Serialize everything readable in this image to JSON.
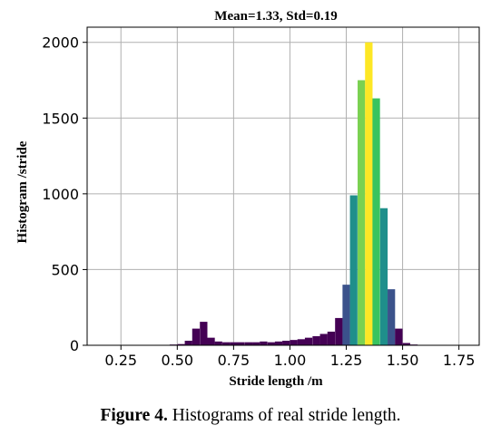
{
  "chart_data": {
    "type": "bar",
    "title": "Mean=1.33, Std=0.19",
    "xlabel": "Stride length /m",
    "ylabel": "Histogram /stride",
    "xlim": [
      0.1,
      1.84
    ],
    "ylim": [
      0,
      2100
    ],
    "bin_width": 0.0333,
    "xticks": [
      "0.25",
      "0.50",
      "0.75",
      "1.00",
      "1.25",
      "1.50",
      "1.75"
    ],
    "yticks": [
      "0",
      "500",
      "1000",
      "1500",
      "2000"
    ],
    "grid": true,
    "bins": [
      {
        "x": 0.15,
        "value": 3,
        "color": "#440154"
      },
      {
        "x": 0.183,
        "value": 3,
        "color": "#440154"
      },
      {
        "x": 0.217,
        "value": 3,
        "color": "#440154"
      },
      {
        "x": 0.25,
        "value": 3,
        "color": "#440154"
      },
      {
        "x": 0.283,
        "value": 3,
        "color": "#440154"
      },
      {
        "x": 0.317,
        "value": 0,
        "color": "#440154"
      },
      {
        "x": 0.35,
        "value": 0,
        "color": "#440154"
      },
      {
        "x": 0.383,
        "value": 0,
        "color": "#440154"
      },
      {
        "x": 0.417,
        "value": 3,
        "color": "#440154"
      },
      {
        "x": 0.45,
        "value": 3,
        "color": "#440154"
      },
      {
        "x": 0.483,
        "value": 5,
        "color": "#440154"
      },
      {
        "x": 0.517,
        "value": 8,
        "color": "#440154"
      },
      {
        "x": 0.55,
        "value": 30,
        "color": "#440154"
      },
      {
        "x": 0.583,
        "value": 110,
        "color": "#440154"
      },
      {
        "x": 0.617,
        "value": 155,
        "color": "#440154"
      },
      {
        "x": 0.65,
        "value": 50,
        "color": "#440154"
      },
      {
        "x": 0.683,
        "value": 25,
        "color": "#440154"
      },
      {
        "x": 0.717,
        "value": 20,
        "color": "#440154"
      },
      {
        "x": 0.75,
        "value": 20,
        "color": "#440154"
      },
      {
        "x": 0.783,
        "value": 20,
        "color": "#440154"
      },
      {
        "x": 0.817,
        "value": 20,
        "color": "#440154"
      },
      {
        "x": 0.85,
        "value": 20,
        "color": "#440154"
      },
      {
        "x": 0.883,
        "value": 25,
        "color": "#440154"
      },
      {
        "x": 0.917,
        "value": 20,
        "color": "#440154"
      },
      {
        "x": 0.95,
        "value": 25,
        "color": "#440154"
      },
      {
        "x": 0.983,
        "value": 30,
        "color": "#440154"
      },
      {
        "x": 1.017,
        "value": 35,
        "color": "#440154"
      },
      {
        "x": 1.05,
        "value": 40,
        "color": "#440154"
      },
      {
        "x": 1.083,
        "value": 50,
        "color": "#440154"
      },
      {
        "x": 1.117,
        "value": 60,
        "color": "#440154"
      },
      {
        "x": 1.15,
        "value": 75,
        "color": "#440154"
      },
      {
        "x": 1.183,
        "value": 90,
        "color": "#440154"
      },
      {
        "x": 1.217,
        "value": 180,
        "color": "#440154"
      },
      {
        "x": 1.25,
        "value": 400,
        "color": "#3b528b"
      },
      {
        "x": 1.283,
        "value": 990,
        "color": "#1f8f8b"
      },
      {
        "x": 1.317,
        "value": 1750,
        "color": "#7ad151"
      },
      {
        "x": 1.35,
        "value": 2000,
        "color": "#fde725"
      },
      {
        "x": 1.383,
        "value": 1630,
        "color": "#38c35f"
      },
      {
        "x": 1.417,
        "value": 905,
        "color": "#1f8f8b"
      },
      {
        "x": 1.45,
        "value": 370,
        "color": "#3b528b"
      },
      {
        "x": 1.483,
        "value": 110,
        "color": "#440154"
      },
      {
        "x": 1.517,
        "value": 15,
        "color": "#440154"
      },
      {
        "x": 1.55,
        "value": 5,
        "color": "#440154"
      },
      {
        "x": 1.583,
        "value": 0,
        "color": "#440154"
      },
      {
        "x": 1.617,
        "value": 0,
        "color": "#440154"
      },
      {
        "x": 1.65,
        "value": 0,
        "color": "#440154"
      },
      {
        "x": 1.683,
        "value": 3,
        "color": "#440154"
      },
      {
        "x": 1.717,
        "value": 0,
        "color": "#440154"
      }
    ]
  },
  "caption": {
    "label": "Figure 4.",
    "text": " Histograms of real stride length."
  }
}
